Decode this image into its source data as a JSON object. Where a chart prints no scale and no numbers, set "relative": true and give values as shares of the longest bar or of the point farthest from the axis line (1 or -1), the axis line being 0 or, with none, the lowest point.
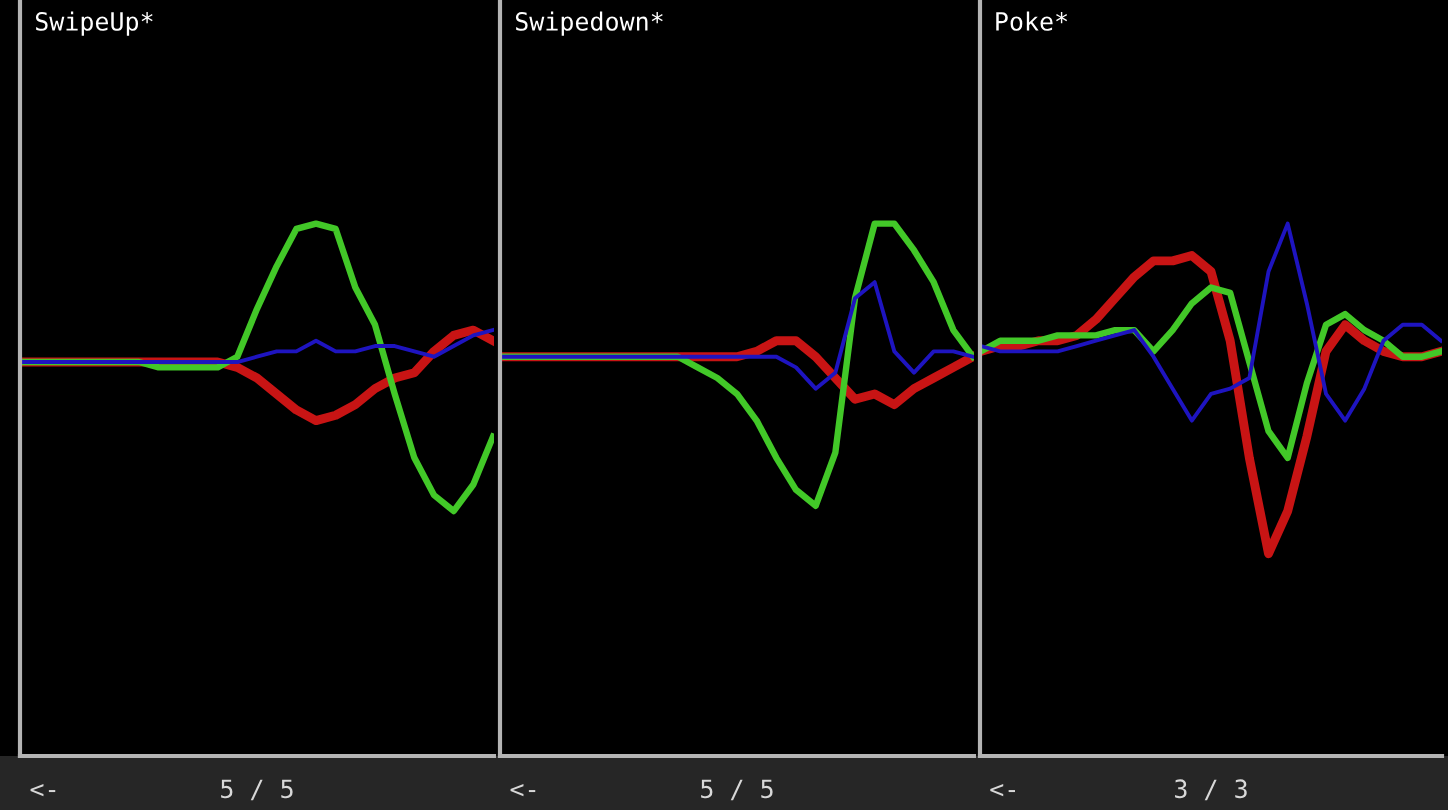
{
  "chart_data": [
    {
      "type": "line",
      "title": "SwipeUp*",
      "relative": true,
      "grid": false,
      "line_style": "solid",
      "marker": "none",
      "categories": [
        null,
        null,
        null,
        null,
        null,
        null,
        null,
        null,
        null,
        null,
        null,
        null,
        null,
        null,
        null,
        null,
        null,
        null,
        null,
        null,
        null,
        null,
        null,
        null,
        null
      ],
      "series": [
        {
          "color": "#c81414",
          "values": [
            0.74,
            0.74,
            0.74,
            0.74,
            0.74,
            0.74,
            0.74,
            0.74,
            0.74,
            0.74,
            0.74,
            0.73,
            0.71,
            0.68,
            0.65,
            0.63,
            0.64,
            0.66,
            0.69,
            0.71,
            0.72,
            0.76,
            0.79,
            0.8,
            0.78
          ]
        },
        {
          "color": "#42c828",
          "values": [
            0.74,
            0.74,
            0.74,
            0.74,
            0.74,
            0.74,
            0.74,
            0.73,
            0.73,
            0.73,
            0.73,
            0.75,
            0.84,
            0.92,
            0.99,
            1,
            0.99,
            0.88,
            0.81,
            0.68,
            0.56,
            0.49,
            0.46,
            0.51,
            0.6
          ]
        },
        {
          "color": "#1e14c0",
          "values": [
            0.74,
            0.74,
            0.74,
            0.74,
            0.74,
            0.74,
            0.74,
            0.74,
            0.74,
            0.74,
            0.74,
            0.74,
            0.75,
            0.76,
            0.76,
            0.78,
            0.76,
            0.76,
            0.77,
            0.77,
            0.76,
            0.75,
            0.77,
            0.79,
            0.8
          ]
        }
      ],
      "annotations": [
        "<-",
        "5 / 5"
      ]
    },
    {
      "type": "line",
      "title": "Swipedown*",
      "relative": true,
      "grid": false,
      "line_style": "solid",
      "marker": "none",
      "categories": [
        null,
        null,
        null,
        null,
        null,
        null,
        null,
        null,
        null,
        null,
        null,
        null,
        null,
        null,
        null,
        null,
        null,
        null,
        null,
        null,
        null,
        null,
        null,
        null,
        null
      ],
      "series": [
        {
          "color": "#c81414",
          "values": [
            0.75,
            0.75,
            0.75,
            0.75,
            0.75,
            0.75,
            0.75,
            0.75,
            0.75,
            0.75,
            0.75,
            0.75,
            0.75,
            0.76,
            0.78,
            0.78,
            0.75,
            0.71,
            0.67,
            0.68,
            0.66,
            0.69,
            0.71,
            0.73,
            0.75
          ]
        },
        {
          "color": "#42c828",
          "values": [
            0.75,
            0.75,
            0.75,
            0.75,
            0.75,
            0.75,
            0.75,
            0.75,
            0.75,
            0.75,
            0.73,
            0.71,
            0.68,
            0.63,
            0.56,
            0.5,
            0.47,
            0.57,
            0.86,
            1,
            1,
            0.95,
            0.89,
            0.8,
            0.75
          ]
        },
        {
          "color": "#1e14c0",
          "values": [
            0.75,
            0.75,
            0.75,
            0.75,
            0.75,
            0.75,
            0.75,
            0.75,
            0.75,
            0.75,
            0.75,
            0.75,
            0.75,
            0.75,
            0.75,
            0.73,
            0.69,
            0.72,
            0.86,
            0.89,
            0.76,
            0.72,
            0.76,
            0.76,
            0.75
          ]
        }
      ],
      "annotations": [
        "<-",
        "5 / 5"
      ]
    },
    {
      "type": "line",
      "title": "Poke*",
      "relative": true,
      "grid": false,
      "line_style": "solid",
      "marker": "none",
      "categories": [
        null,
        null,
        null,
        null,
        null,
        null,
        null,
        null,
        null,
        null,
        null,
        null,
        null,
        null,
        null,
        null,
        null,
        null,
        null,
        null,
        null,
        null,
        null,
        null,
        null
      ],
      "series": [
        {
          "color": "#c81414",
          "values": [
            0.76,
            0.77,
            0.77,
            0.78,
            0.78,
            0.79,
            0.82,
            0.86,
            0.9,
            0.93,
            0.93,
            0.94,
            0.91,
            0.78,
            0.56,
            0.38,
            0.46,
            0.6,
            0.76,
            0.81,
            0.78,
            0.76,
            0.75,
            0.75,
            0.76
          ]
        },
        {
          "color": "#42c828",
          "values": [
            0.76,
            0.78,
            0.78,
            0.78,
            0.79,
            0.79,
            0.79,
            0.8,
            0.8,
            0.76,
            0.8,
            0.85,
            0.88,
            0.87,
            0.74,
            0.61,
            0.56,
            0.7,
            0.81,
            0.83,
            0.8,
            0.78,
            0.75,
            0.75,
            0.76
          ]
        },
        {
          "color": "#1e14c0",
          "values": [
            0.77,
            0.76,
            0.76,
            0.76,
            0.76,
            0.77,
            0.78,
            0.79,
            0.8,
            0.75,
            0.69,
            0.63,
            0.68,
            0.69,
            0.71,
            0.91,
            1,
            0.85,
            0.68,
            0.63,
            0.69,
            0.78,
            0.81,
            0.81,
            0.78
          ]
        }
      ],
      "annotations": [
        "<-",
        "3 / 3"
      ]
    }
  ]
}
